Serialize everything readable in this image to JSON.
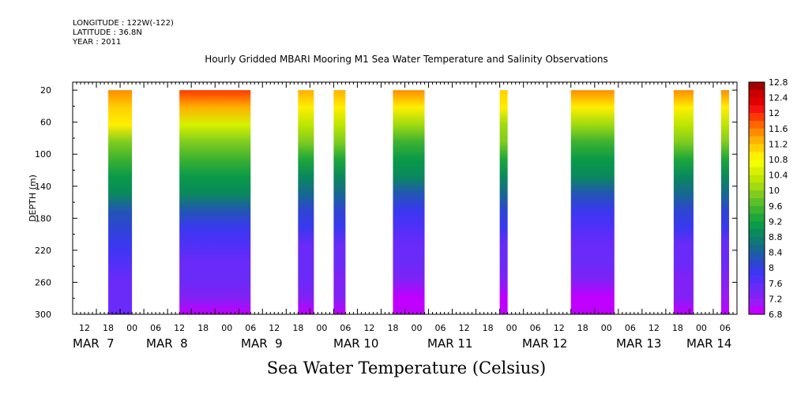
{
  "header": {
    "longitude": "LONGITUDE : 122W(-122)",
    "latitude": "LATITUDE : 36.8N",
    "year": "YEAR : 2011"
  },
  "chart_data": {
    "type": "heatmap",
    "title": "Hourly Gridded MBARI Mooring M1 Sea Water Temperature and Salinity Observations",
    "caption": "Sea Water Temperature (Celsius)",
    "ylabel": "DEPTH (m)",
    "y_axis": {
      "range": [
        300,
        10
      ],
      "inverted": true,
      "ticks": [
        20,
        60,
        100,
        140,
        180,
        220,
        260,
        300
      ]
    },
    "x_axis": {
      "range_hours": [
        0,
        168
      ],
      "hour_ticks": [
        "12",
        "18",
        "00",
        "06",
        "12",
        "18",
        "00",
        "06",
        "12",
        "18",
        "00",
        "06",
        "12",
        "18",
        "00",
        "06",
        "12",
        "18",
        "00",
        "06",
        "12",
        "18",
        "00",
        "06",
        "12",
        "18",
        "00",
        "06",
        "12",
        "18",
        "00",
        "06"
      ],
      "day_labels": [
        "MAR  7",
        "MAR  8",
        "MAR  9",
        "MAR 10",
        "MAR 11",
        "MAR 12",
        "MAR 13",
        "MAR 14"
      ]
    },
    "colorbar": {
      "labels": [
        "12.8",
        "12.4",
        "12",
        "11.6",
        "11.2",
        "10.8",
        "10.4",
        "10",
        "9.6",
        "9.2",
        "8.8",
        "8.4",
        "8",
        "7.6",
        "7.2",
        "6.8"
      ],
      "colors": [
        "#a30000",
        "#c80000",
        "#e10000",
        "#f41212",
        "#ff3a00",
        "#ff6600",
        "#ff8c00",
        "#ffb000",
        "#ffd000",
        "#ffef00",
        "#f2ff00",
        "#d6f200",
        "#bde600",
        "#a0da10",
        "#7fcc1f",
        "#5cbf2a",
        "#3db231",
        "#1ea63a",
        "#0a9a48",
        "#09895c",
        "#0f7a74",
        "#17688f",
        "#2256b3",
        "#2e45d2",
        "#3a38f0",
        "#5030f8",
        "#6a2af8",
        "#8022f5",
        "#9a1af8",
        "#c000ff"
      ]
    },
    "series": [
      {
        "segment_hours": [
          9,
          15
        ],
        "values_by_depth": [
          11.6,
          11.2,
          10.8,
          10.0,
          9.6,
          9.2,
          8.8,
          8.4,
          8.2,
          8.0,
          7.8,
          7.6,
          7.5,
          7.4
        ]
      },
      {
        "segment_hours": [
          27,
          45
        ],
        "values_by_depth": [
          11.8,
          11.4,
          10.6,
          10.0,
          9.6,
          9.2,
          8.8,
          8.3,
          8.0,
          7.8,
          7.6,
          7.4,
          7.2,
          7.0
        ]
      },
      {
        "segment_hours": [
          57,
          61
        ],
        "values_by_depth": [
          11.4,
          11.0,
          10.4,
          9.8,
          9.4,
          9.0,
          8.6,
          8.2,
          7.9,
          7.6,
          7.5,
          7.4,
          7.2,
          7.0
        ]
      },
      {
        "segment_hours": [
          66,
          69
        ],
        "values_by_depth": [
          11.4,
          11.0,
          10.4,
          9.8,
          9.4,
          9.0,
          8.6,
          8.2,
          7.9,
          7.6,
          7.4,
          7.3,
          7.2,
          7.0
        ]
      },
      {
        "segment_hours": [
          81,
          89
        ],
        "values_by_depth": [
          11.6,
          11.0,
          10.2,
          9.6,
          9.2,
          8.8,
          8.4,
          8.0,
          7.8,
          7.6,
          7.4,
          7.2,
          7.0,
          6.9
        ]
      },
      {
        "segment_hours": [
          108,
          110
        ],
        "values_by_depth": [
          11.2,
          10.8,
          10.2,
          9.8,
          9.4,
          9.0,
          8.6,
          8.2,
          7.9,
          7.6,
          7.4,
          7.2,
          7.0,
          6.9
        ]
      },
      {
        "segment_hours": [
          126,
          137
        ],
        "values_by_depth": [
          11.6,
          11.0,
          10.2,
          9.6,
          9.2,
          8.8,
          8.4,
          8.0,
          7.8,
          7.6,
          7.4,
          7.2,
          7.0,
          6.9
        ]
      },
      {
        "segment_hours": [
          152,
          157
        ],
        "values_by_depth": [
          11.6,
          11.0,
          10.4,
          9.8,
          9.4,
          9.0,
          8.6,
          8.2,
          7.9,
          7.6,
          7.4,
          7.3,
          7.2,
          7.0
        ]
      },
      {
        "segment_hours": [
          164,
          166
        ],
        "values_by_depth": [
          11.6,
          11.0,
          10.4,
          9.8,
          9.4,
          9.0,
          8.6,
          8.2,
          7.9,
          7.6,
          7.4,
          7.3,
          7.1,
          7.0
        ]
      }
    ]
  }
}
